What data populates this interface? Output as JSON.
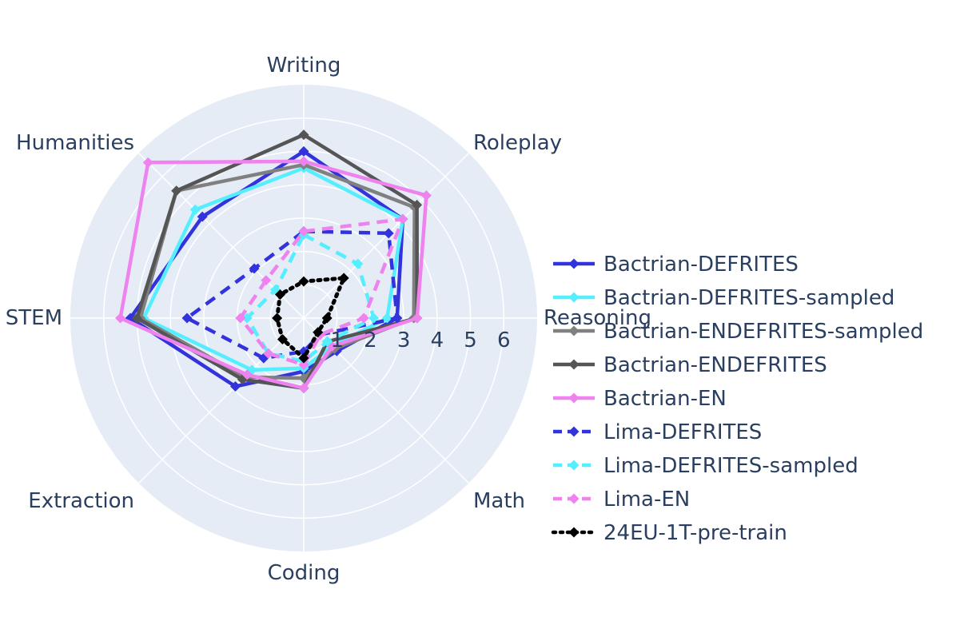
{
  "chart_data": {
    "type": "radar",
    "axes": [
      "Writing",
      "Roleplay",
      "Reasoning",
      "Math",
      "Coding",
      "Extraction",
      "STEM",
      "Humanities"
    ],
    "radial_ticks": [
      "1",
      "2",
      "3",
      "4",
      "5",
      "6"
    ],
    "radial_range": [
      0,
      7
    ],
    "grid": true,
    "legend_position": "right",
    "series": [
      {
        "name": "Bactrian-DEFRITES",
        "color": "#3333dd",
        "dash": "solid",
        "values": [
          5.0,
          4.2,
          2.8,
          1.4,
          1.6,
          2.9,
          5.2,
          4.3
        ]
      },
      {
        "name": "Bactrian-DEFRITES-sampled",
        "color": "#55eeff",
        "dash": "solid",
        "values": [
          4.5,
          4.2,
          2.5,
          1.2,
          1.5,
          2.2,
          4.8,
          4.6
        ]
      },
      {
        "name": "Bactrian-ENDEFRITES-sampled",
        "color": "#808080",
        "dash": "solid",
        "values": [
          4.6,
          4.7,
          3.3,
          1.3,
          1.8,
          2.5,
          4.9,
          5.4
        ]
      },
      {
        "name": "Bactrian-ENDEFRITES",
        "color": "#555555",
        "dash": "solid",
        "values": [
          5.5,
          4.8,
          3.4,
          1.0,
          2.1,
          2.6,
          5.0,
          5.4
        ]
      },
      {
        "name": "Bactrian-EN",
        "color": "#ee82ee",
        "dash": "solid",
        "values": [
          4.7,
          5.2,
          3.4,
          1.2,
          2.1,
          2.4,
          5.5,
          6.6
        ]
      },
      {
        "name": "Lima-DEFRITES",
        "color": "#3333dd",
        "dash": "dash",
        "values": [
          2.6,
          3.6,
          2.8,
          0.7,
          1.0,
          1.7,
          3.5,
          2.1
        ]
      },
      {
        "name": "Lima-DEFRITES-sampled",
        "color": "#55eeff",
        "dash": "dash",
        "values": [
          2.5,
          2.3,
          2.1,
          1.0,
          1.3,
          1.5,
          1.7,
          1.2
        ]
      },
      {
        "name": "Lima-EN",
        "color": "#ee82ee",
        "dash": "dash",
        "values": [
          2.6,
          4.2,
          1.8,
          0.7,
          1.4,
          1.5,
          1.9,
          1.6
        ]
      },
      {
        "name": "24EU-1T-pre-train",
        "color": "#000000",
        "dash": "dot",
        "values": [
          1.1,
          1.7,
          0.7,
          0.6,
          1.2,
          0.9,
          0.8,
          1.0
        ]
      }
    ]
  }
}
